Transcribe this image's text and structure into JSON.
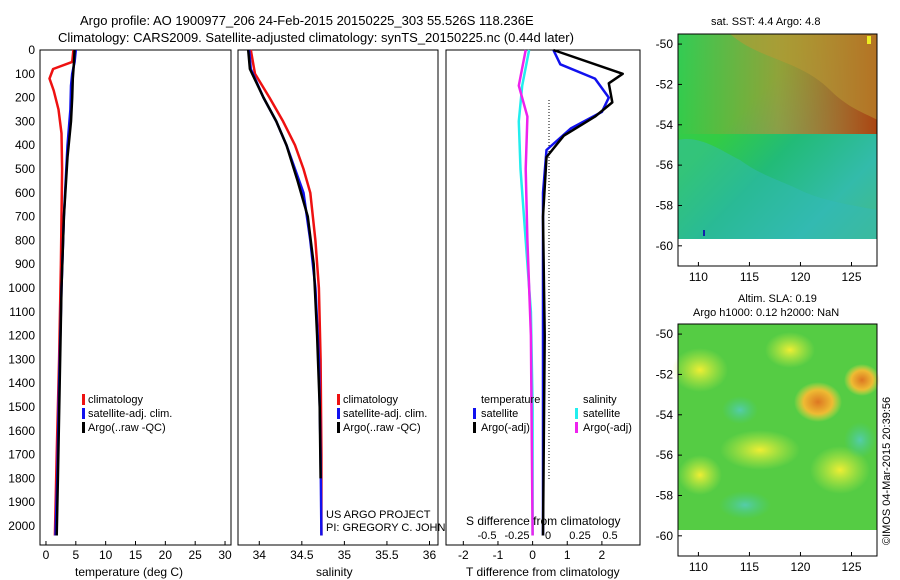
{
  "header": {
    "line1": "Argo profile: AO 1900977_206 24-Feb-2015 20150225_303 55.526S 118.236E",
    "line2": "Climatology: CARS2009. Satellite-adjusted climatology: synTS_20150225.nc (0.44d later)"
  },
  "colors": {
    "climatology": "#ee1111",
    "satellite": "#1111ee",
    "argo": "#000000",
    "sat_salinity": "#22eeee",
    "argo_salinity_diff": "#ee22ee"
  },
  "depth_axis": {
    "ticks": [
      "0",
      "100",
      "200",
      "300",
      "400",
      "500",
      "600",
      "700",
      "800",
      "900",
      "1000",
      "1100",
      "1200",
      "1300",
      "1400",
      "1500",
      "1600",
      "1700",
      "1800",
      "1900",
      "2000"
    ],
    "range": [
      0,
      2080
    ]
  },
  "chart_data": [
    {
      "type": "line",
      "id": "temperature",
      "xlabel": "temperature (deg C)",
      "ylabel": "",
      "xlim": [
        -1,
        31
      ],
      "ylim": [
        2080,
        0
      ],
      "xticks": [
        "0",
        "5",
        "10",
        "15",
        "20",
        "25",
        "30"
      ],
      "legend": [
        "climatology",
        "satellite-adj. clim.",
        "Argo(..raw -QC)"
      ],
      "legend_position": "bottom-center",
      "series": [
        {
          "name": "climatology",
          "color": "climatology",
          "x": [
            4.6,
            4.4,
            1.2,
            0.6,
            1.3,
            2.1,
            2.6,
            2.7,
            2.5,
            2.2,
            1.8,
            1.5
          ],
          "y": [
            0,
            50,
            80,
            120,
            170,
            250,
            350,
            500,
            900,
            1300,
            1700,
            2040
          ]
        },
        {
          "name": "satellite-adj. clim.",
          "color": "satellite",
          "x": [
            5.0,
            4.8,
            4.4,
            4.2,
            4.1,
            3.6,
            3.0,
            2.6,
            2.2,
            1.9,
            1.6
          ],
          "y": [
            0,
            50,
            100,
            150,
            250,
            400,
            700,
            1000,
            1400,
            1800,
            2040
          ]
        },
        {
          "name": "Argo(..raw -QC)",
          "color": "argo",
          "x": [
            4.8,
            4.7,
            4.5,
            4.4,
            4.2,
            3.6,
            3.0,
            2.6,
            2.3,
            2.0,
            1.8
          ],
          "y": [
            0,
            50,
            120,
            200,
            300,
            450,
            700,
            1000,
            1400,
            1800,
            2040
          ]
        }
      ]
    },
    {
      "type": "line",
      "id": "salinity",
      "xlabel": "salinity",
      "ylabel": "",
      "xlim": [
        33.75,
        36.1
      ],
      "ylim": [
        2080,
        0
      ],
      "xticks": [
        "34",
        "34.5",
        "35",
        "35.5",
        "36"
      ],
      "legend": [
        "climatology",
        "satellite-adj. clim.",
        "Argo(..raw -QC)"
      ],
      "legend_position": "bottom-right",
      "annotations": [
        "US ARGO PROJECT",
        "PI: GREGORY C. JOHNSON"
      ],
      "series": [
        {
          "name": "climatology",
          "color": "climatology",
          "x": [
            33.9,
            33.95,
            34.12,
            34.28,
            34.42,
            34.52,
            34.6,
            34.66,
            34.7,
            34.72,
            34.73,
            34.73
          ],
          "y": [
            0,
            100,
            200,
            300,
            400,
            500,
            600,
            800,
            1000,
            1300,
            1700,
            2040
          ]
        },
        {
          "name": "satellite-adj. clim.",
          "color": "satellite",
          "x": [
            33.88,
            33.9,
            34.05,
            34.2,
            34.32,
            34.42,
            34.52,
            34.6,
            34.66,
            34.7,
            34.72,
            34.73
          ],
          "y": [
            0,
            80,
            200,
            300,
            400,
            500,
            600,
            800,
            1000,
            1300,
            1700,
            2040
          ]
        },
        {
          "name": "Argo(..raw -QC)",
          "color": "argo",
          "x": [
            33.87,
            33.89,
            34.05,
            34.2,
            34.32,
            34.45,
            34.57,
            34.64,
            34.68,
            34.71,
            34.72
          ],
          "y": [
            0,
            80,
            200,
            300,
            400,
            550,
            700,
            900,
            1200,
            1500,
            1800
          ]
        }
      ]
    },
    {
      "type": "line",
      "id": "difference",
      "xlabel": "T difference from climatology",
      "xlabel_top": "S difference from climatology",
      "xlim": [
        -2.5,
        3.1
      ],
      "ylim": [
        2080,
        0
      ],
      "xticks": [
        "-2",
        "-1",
        "0",
        "1",
        "2"
      ],
      "top_xticks": [
        "-0.5",
        "-0.25",
        "0",
        "0.25",
        "0.5"
      ],
      "legend": [
        "temperature",
        "satellite",
        "Argo(-adj)",
        "salinity",
        "satellite",
        "Argo(-adj)"
      ],
      "series": [
        {
          "name": "temperature satellite",
          "color": "satellite",
          "x": [
            0.6,
            0.8,
            1.8,
            2.2,
            2.0,
            1.1,
            0.4,
            0.3,
            0.3,
            0.3,
            0.3
          ],
          "y": [
            0,
            60,
            120,
            200,
            260,
            330,
            420,
            600,
            1000,
            1500,
            2040
          ]
        },
        {
          "name": "temperature Argo(-adj)",
          "color": "argo",
          "x": [
            0.6,
            2.6,
            2.2,
            2.3,
            1.8,
            0.9,
            0.4,
            0.3,
            0.35,
            0.3
          ],
          "y": [
            0,
            100,
            140,
            220,
            280,
            360,
            450,
            700,
            1200,
            2040
          ]
        },
        {
          "name": "salinity satellite",
          "color": "sat_salinity",
          "x": [
            -0.1,
            -0.3,
            -0.4,
            -0.35,
            -0.2,
            -0.05,
            0.0,
            0.0
          ],
          "y": [
            0,
            150,
            300,
            500,
            800,
            1100,
            1500,
            2040
          ]
        },
        {
          "name": "salinity Argo(-adj)",
          "color": "argo_salinity_diff",
          "x": [
            -0.2,
            -0.4,
            -0.15,
            -0.2,
            -0.15,
            -0.05,
            0.0
          ],
          "y": [
            0,
            150,
            280,
            500,
            800,
            1200,
            2040
          ]
        }
      ]
    },
    {
      "type": "heatmap",
      "id": "sst_map",
      "title": "sat. SST: 4.4 Argo: 4.8",
      "xlim": [
        108,
        127.5
      ],
      "ylim": [
        -61,
        -49.5
      ],
      "xticks": [
        "110",
        "115",
        "120",
        "125"
      ],
      "yticks": [
        "-50",
        "-52",
        "-54",
        "-56",
        "-58",
        "-60"
      ]
    },
    {
      "type": "heatmap",
      "id": "sla_map",
      "title_line1": "Altim. SLA: 0.19",
      "title_line2": "Argo h1000: 0.12 h2000: NaN",
      "xlim": [
        108,
        127.5
      ],
      "ylim": [
        -61,
        -49.5
      ],
      "xticks": [
        "110",
        "115",
        "120",
        "125"
      ],
      "yticks": [
        "-50",
        "-52",
        "-54",
        "-56",
        "-58",
        "-60"
      ]
    }
  ],
  "footer": {
    "stamp": "©IMOS 04-Mar-2015 20:39:56"
  }
}
